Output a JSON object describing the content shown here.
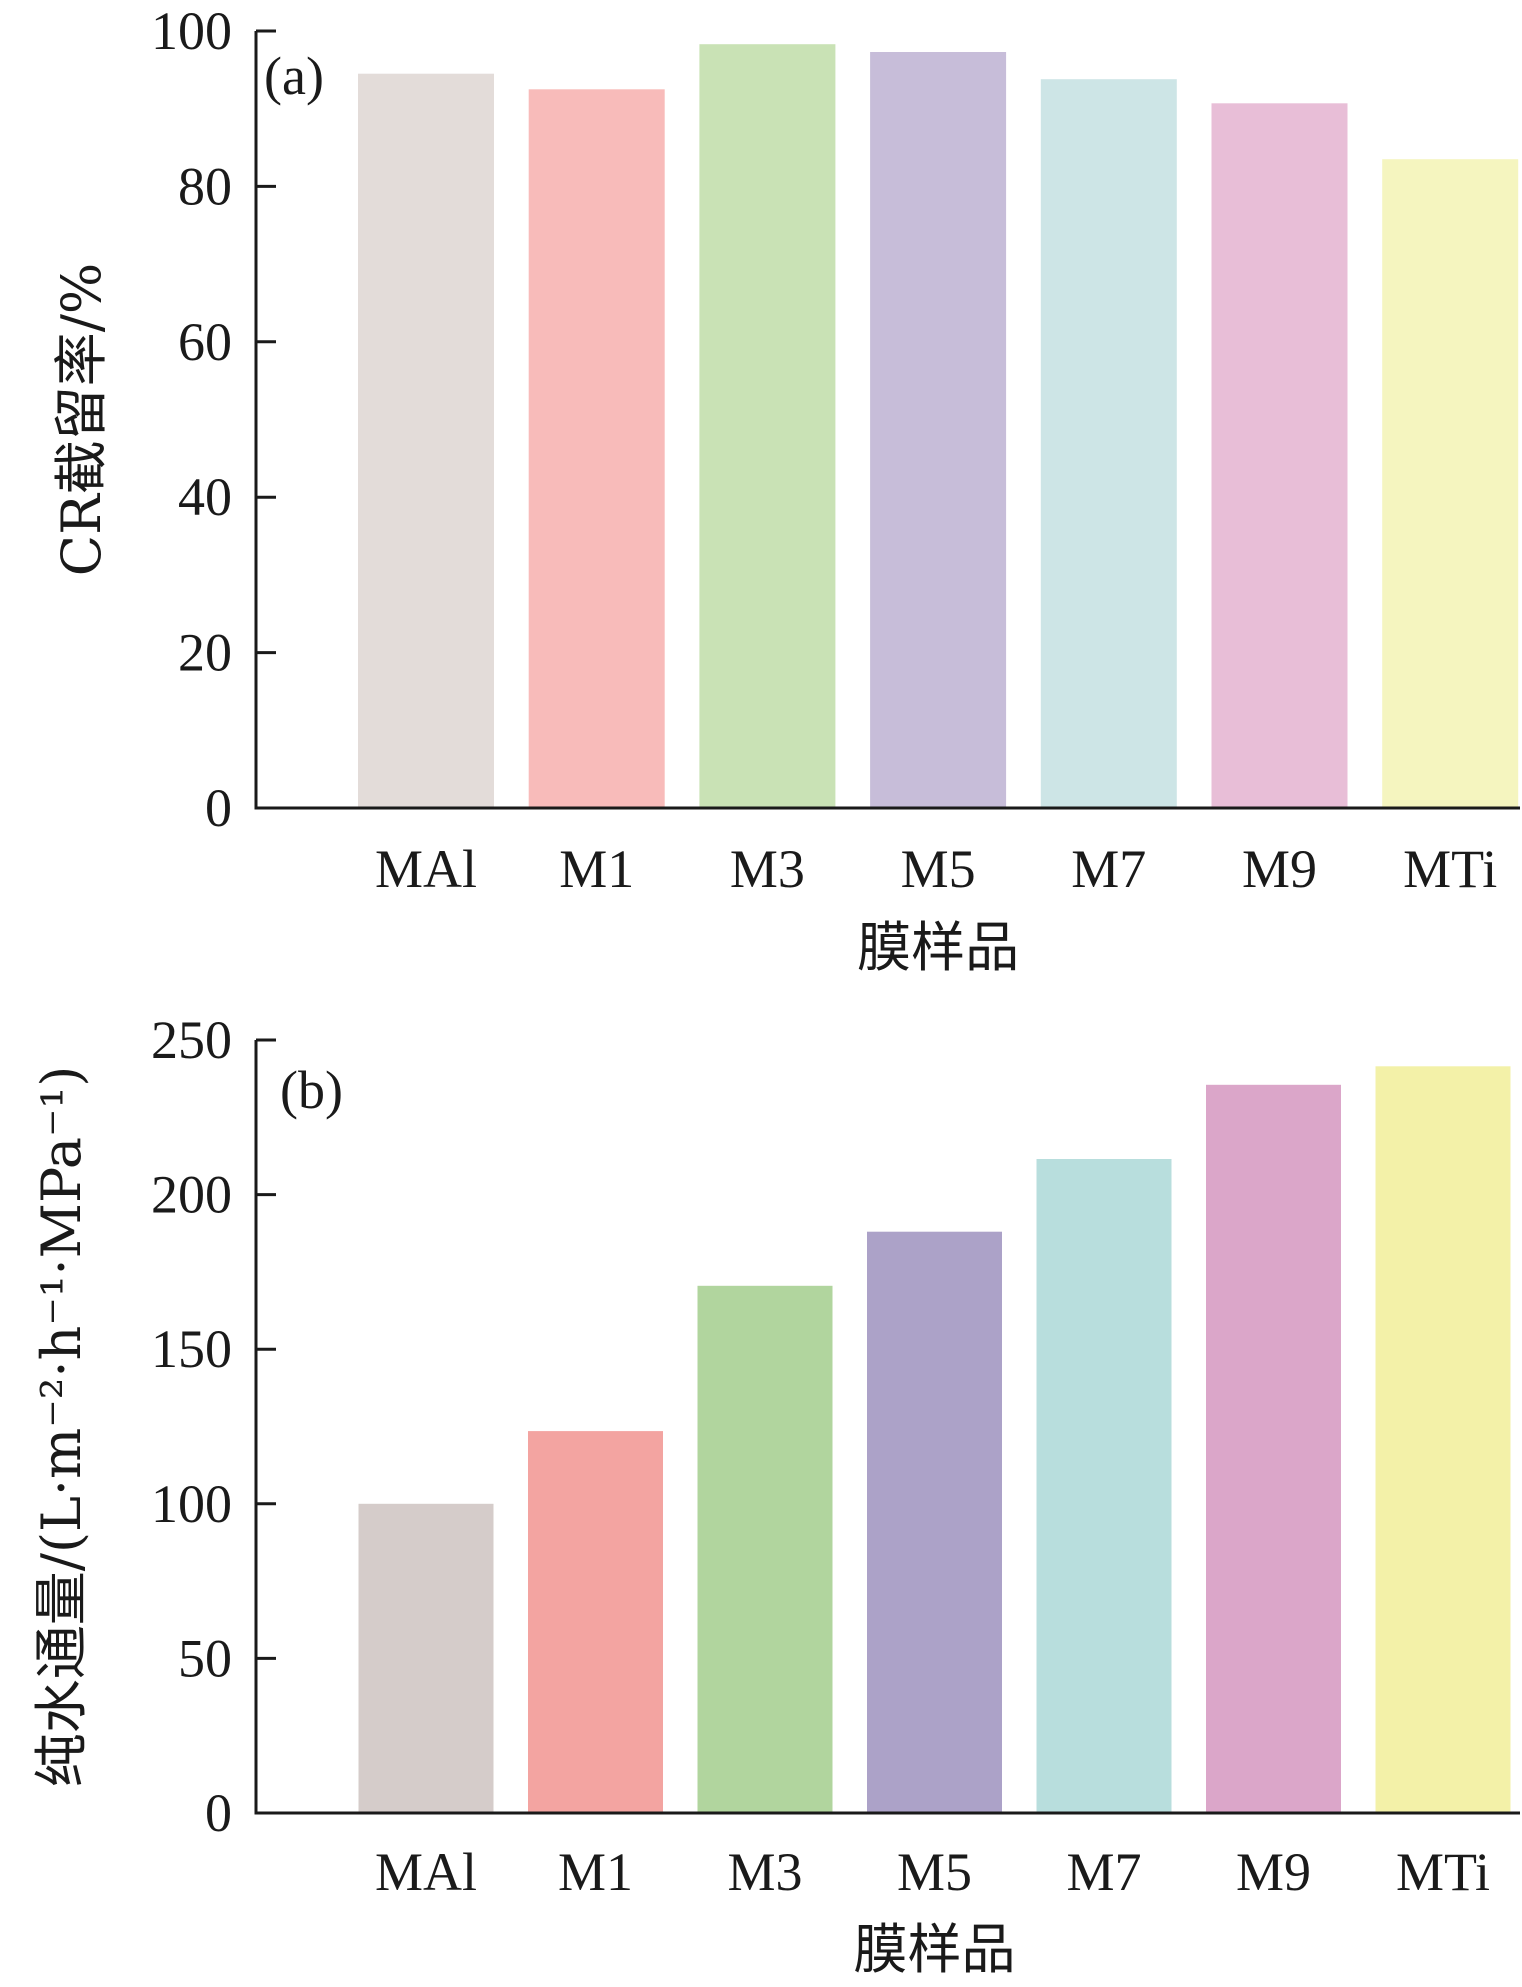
{
  "chart_data": [
    {
      "type": "bar",
      "panel_label": "(a)",
      "categories": [
        "MAl",
        "M1",
        "M3",
        "M5",
        "M7",
        "M9",
        "MTi"
      ],
      "values": [
        94.5,
        92.5,
        98.3,
        97.3,
        93.8,
        90.7,
        83.5
      ],
      "colors": [
        "#e3dcd9",
        "#f8bbba",
        "#c9e2b5",
        "#c7bdd9",
        "#cde5e6",
        "#e8bed7",
        "#f5f5bf"
      ],
      "xlabel": "膜样品",
      "ylabel": "CR截留率/%",
      "ylim": [
        0,
        100
      ],
      "yticks": [
        0,
        20,
        40,
        60,
        80,
        100
      ],
      "ytick_labels": [
        "0",
        "20",
        "40",
        "60",
        "80",
        "100"
      ],
      "grid": false
    },
    {
      "type": "bar",
      "panel_label": "(b)",
      "categories": [
        "MAl",
        "M1",
        "M3",
        "M5",
        "M7",
        "M9",
        "MTi"
      ],
      "values": [
        100,
        123.5,
        170.5,
        188,
        211.5,
        235.5,
        241.5
      ],
      "colors": [
        "#d5ccca",
        "#f3a4a1",
        "#b1d59e",
        "#aca2c8",
        "#b8dedd",
        "#dba6c9",
        "#f3f1a8"
      ],
      "xlabel": "膜样品",
      "ylabel": "纯水通量/(L·m⁻²·h⁻¹·MPa⁻¹)",
      "ylim": [
        0,
        250
      ],
      "yticks": [
        0,
        50,
        100,
        150,
        200,
        250
      ],
      "ytick_labels": [
        "0",
        "50",
        "100",
        "150",
        "200",
        "250"
      ],
      "grid": false
    }
  ]
}
